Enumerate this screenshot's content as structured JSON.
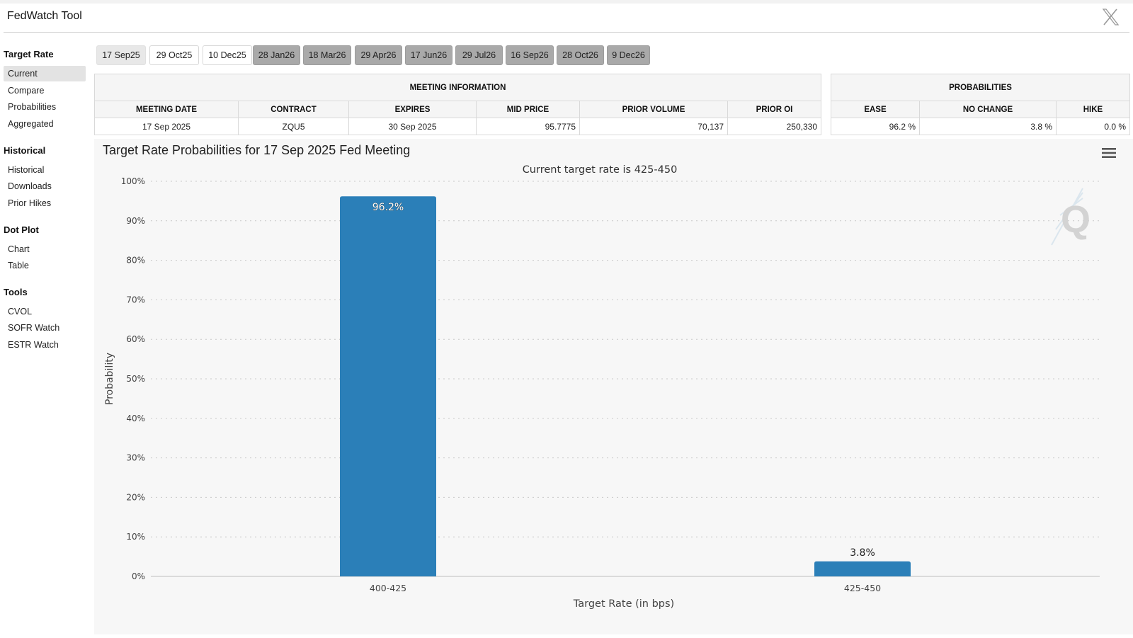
{
  "header": {
    "title": "FedWatch Tool"
  },
  "sidebar": {
    "groups": [
      {
        "heading": "Target Rate",
        "items": [
          "Current",
          "Compare",
          "Probabilities",
          "Aggregated"
        ]
      },
      {
        "heading": "Historical",
        "items": [
          "Historical",
          "Downloads",
          "Prior Hikes"
        ]
      },
      {
        "heading": "Dot Plot",
        "items": [
          "Chart",
          "Table"
        ]
      },
      {
        "heading": "Tools",
        "items": [
          "CVOL",
          "SOFR Watch",
          "ESTR Watch"
        ]
      }
    ],
    "active_item": "Current"
  },
  "meeting_tabs": [
    "17 Sep25",
    "29 Oct25",
    "10 Dec25",
    "28 Jan26",
    "18 Mar26",
    "29 Apr26",
    "17 Jun26",
    "29 Jul26",
    "16 Sep26",
    "28 Oct26",
    "9 Dec26"
  ],
  "selected_tab": "17 Sep25",
  "meeting_info": {
    "caption": "MEETING INFORMATION",
    "headers": [
      "MEETING DATE",
      "CONTRACT",
      "EXPIRES",
      "MID PRICE",
      "PRIOR VOLUME",
      "PRIOR OI"
    ],
    "row": [
      "17 Sep 2025",
      "ZQU5",
      "30 Sep 2025",
      "95.7775",
      "70,137",
      "250,330"
    ]
  },
  "probabilities": {
    "caption": "PROBABILITIES",
    "headers": [
      "EASE",
      "NO CHANGE",
      "HIKE"
    ],
    "row": [
      "96.2 %",
      "3.8 %",
      "0.0 %"
    ]
  },
  "chart_data": {
    "type": "bar",
    "title": "Target Rate Probabilities for 17 Sep 2025 Fed Meeting",
    "subtitle": "Current target rate is 425-450",
    "xlabel": "Target Rate (in bps)",
    "ylabel": "Probability",
    "categories": [
      "400-425",
      "425-450"
    ],
    "values": [
      96.2,
      3.8
    ],
    "data_labels": [
      "96.2%",
      "3.8%"
    ],
    "yticks": [
      "0%",
      "10%",
      "20%",
      "30%",
      "40%",
      "50%",
      "60%",
      "70%",
      "80%",
      "90%",
      "100%"
    ],
    "ylim": [
      0,
      100
    ],
    "grid": true,
    "bar_color": "#2b7fb8",
    "watermark": "Q"
  },
  "colors": {
    "bar": "#2b7fb8",
    "future_tab": "#a9a9a9",
    "panel_bg": "#f7f7f7"
  }
}
